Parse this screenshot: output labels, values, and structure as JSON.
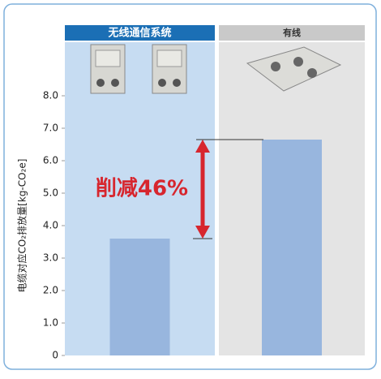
{
  "chart_data": {
    "type": "bar",
    "categories": [
      "无线通信系统",
      "有线"
    ],
    "values": [
      3.6,
      6.65
    ],
    "color": "#98b6de",
    "header_colors": [
      "#1b6fb5",
      "#c9c9c9"
    ],
    "column_colors": [
      "#c6dcf2",
      "#e4e4e4"
    ],
    "y_label": "电缆对应CO₂排放量[kg-CO₂e]",
    "annotation": "削减46%",
    "ylim": [
      0,
      8
    ],
    "yticks": [
      0,
      {
        "value": 1,
        "label": "1.0"
      },
      {
        "value": 2,
        "label": "2.0"
      },
      {
        "value": 3,
        "label": "3.0"
      },
      {
        "value": 4,
        "label": "4.0"
      },
      {
        "value": 5,
        "label": "5.0"
      },
      {
        "value": 6,
        "label": "6.0"
      },
      {
        "value": 7,
        "label": "7.0"
      },
      {
        "value": 8,
        "label": "8.0"
      }
    ]
  }
}
